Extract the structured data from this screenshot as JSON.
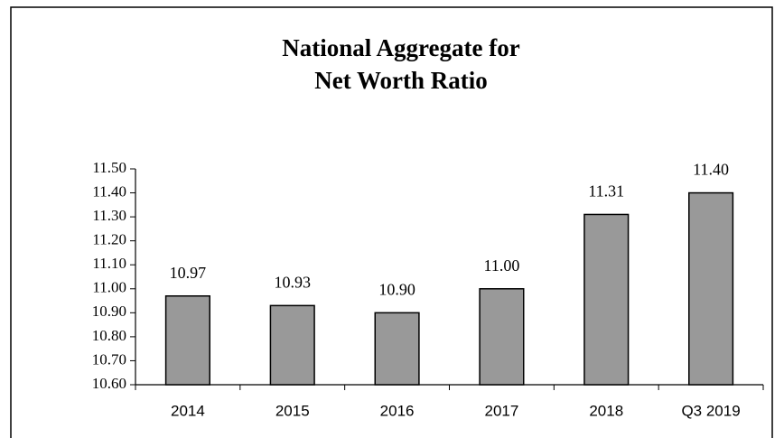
{
  "chart_data": {
    "type": "bar",
    "title": [
      "National Aggregate for",
      "Net Worth Ratio"
    ],
    "categories": [
      "2014",
      "2015",
      "2016",
      "2017",
      "2018",
      "Q3 2019"
    ],
    "values": [
      10.97,
      10.93,
      10.9,
      11.0,
      11.31,
      11.4
    ],
    "value_labels": [
      "10.97",
      "10.93",
      "10.90",
      "11.00",
      "11.31",
      "11.40"
    ],
    "color": "#999999",
    "ylim": [
      10.6,
      11.5
    ],
    "yticks": [
      {
        "value": 10.6,
        "label": "10.60"
      },
      {
        "value": 10.7,
        "label": "10.70"
      },
      {
        "value": 10.8,
        "label": "10.80"
      },
      {
        "value": 10.9,
        "label": "10.90"
      },
      {
        "value": 11.0,
        "label": "11.00"
      },
      {
        "value": 11.1,
        "label": "11.10"
      },
      {
        "value": 11.2,
        "label": "11.20"
      },
      {
        "value": 11.3,
        "label": "11.30"
      },
      {
        "value": 11.4,
        "label": "11.40"
      },
      {
        "value": 11.5,
        "label": "11.50"
      }
    ],
    "grid": false
  }
}
